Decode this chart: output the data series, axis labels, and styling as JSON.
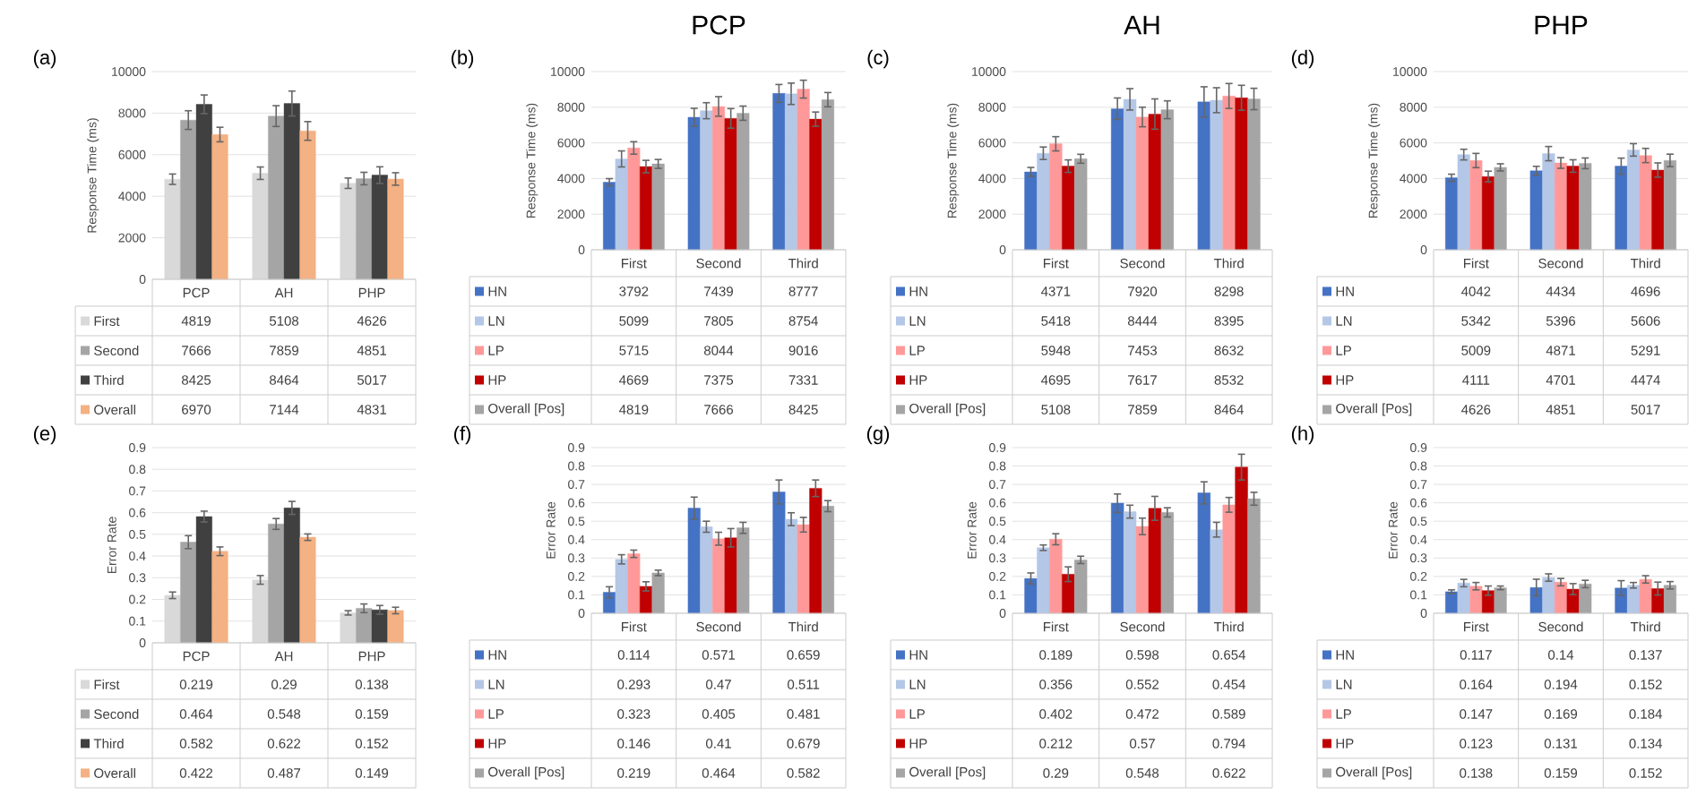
{
  "chart_data": [
    {
      "type": "bar",
      "annotations": [
        "(a)"
      ],
      "ylabel": "Response Time (ms)",
      "categories": [
        "PCP",
        "AH",
        "PHP"
      ],
      "ylim": [
        0,
        10000
      ],
      "yticks": [
        0,
        2000,
        4000,
        6000,
        8000,
        10000
      ],
      "grid": "y",
      "legend": "bottom",
      "data_labels": true,
      "series": [
        {
          "name": "First",
          "color": "#d9d9d9",
          "values": [
            4819,
            5108,
            4626
          ],
          "errors": [
            250,
            300,
            250
          ]
        },
        {
          "name": "Second",
          "color": "#a5a5a5",
          "values": [
            7666,
            7859,
            4851
          ],
          "errors": [
            450,
            500,
            300
          ]
        },
        {
          "name": "Third",
          "color": "#404040",
          "values": [
            8425,
            8464,
            5017
          ],
          "errors": [
            450,
            600,
            400
          ]
        },
        {
          "name": "Overall",
          "color": "#f4b183",
          "values": [
            6970,
            7144,
            4831
          ],
          "errors": [
            350,
            450,
            300
          ]
        }
      ]
    },
    {
      "type": "bar",
      "title": "PCP",
      "annotations": [
        "(b)"
      ],
      "ylabel": "Response Time (ms)",
      "categories": [
        "First",
        "Second",
        "Third"
      ],
      "ylim": [
        0,
        10000
      ],
      "yticks": [
        0,
        2000,
        4000,
        6000,
        8000,
        10000
      ],
      "grid": "y",
      "legend": "bottom",
      "data_labels": true,
      "series": [
        {
          "name": "HN",
          "color": "#4472c4",
          "values": [
            3792,
            7439,
            8777
          ],
          "errors": [
            200,
            500,
            500
          ]
        },
        {
          "name": "LN",
          "color": "#b4c7e7",
          "values": [
            5099,
            7805,
            8754
          ],
          "errors": [
            450,
            450,
            600
          ]
        },
        {
          "name": "LP",
          "color": "#ff9999",
          "values": [
            5715,
            8044,
            9016
          ],
          "errors": [
            350,
            550,
            500
          ]
        },
        {
          "name": "HP",
          "color": "#c00000",
          "values": [
            4669,
            7375,
            7331
          ],
          "errors": [
            350,
            550,
            400
          ]
        },
        {
          "name": "Overall [Pos]",
          "color": "#a5a5a5",
          "values": [
            4819,
            7666,
            8425
          ],
          "errors": [
            250,
            400,
            400
          ]
        }
      ]
    },
    {
      "type": "bar",
      "title": "AH",
      "annotations": [
        "(c)"
      ],
      "ylabel": "Response Time (ms)",
      "categories": [
        "First",
        "Second",
        "Third"
      ],
      "ylim": [
        0,
        10000
      ],
      "yticks": [
        0,
        2000,
        4000,
        6000,
        8000,
        10000
      ],
      "grid": "y",
      "legend": "bottom",
      "data_labels": true,
      "series": [
        {
          "name": "HN",
          "color": "#4472c4",
          "values": [
            4371,
            7920,
            8298
          ],
          "errors": [
            250,
            600,
            850
          ]
        },
        {
          "name": "LN",
          "color": "#b4c7e7",
          "values": [
            5418,
            8444,
            8395
          ],
          "errors": [
            350,
            600,
            700
          ]
        },
        {
          "name": "LP",
          "color": "#ff9999",
          "values": [
            5948,
            7453,
            8632
          ],
          "errors": [
            400,
            550,
            700
          ]
        },
        {
          "name": "HP",
          "color": "#c00000",
          "values": [
            4695,
            7617,
            8532
          ],
          "errors": [
            350,
            850,
            700
          ]
        },
        {
          "name": "Overall [Pos]",
          "color": "#a5a5a5",
          "values": [
            5108,
            7859,
            8464
          ],
          "errors": [
            250,
            500,
            600
          ]
        }
      ]
    },
    {
      "type": "bar",
      "title": "PHP",
      "annotations": [
        "(d)"
      ],
      "ylabel": "Response Time (ms)",
      "categories": [
        "First",
        "Second",
        "Third"
      ],
      "ylim": [
        0,
        10000
      ],
      "yticks": [
        0,
        2000,
        4000,
        6000,
        8000,
        10000
      ],
      "grid": "y",
      "legend": "bottom",
      "data_labels": true,
      "series": [
        {
          "name": "HN",
          "color": "#4472c4",
          "values": [
            4042,
            4434,
            4696
          ],
          "errors": [
            200,
            250,
            450
          ]
        },
        {
          "name": "LN",
          "color": "#b4c7e7",
          "values": [
            5342,
            5396,
            5606
          ],
          "errors": [
            300,
            400,
            350
          ]
        },
        {
          "name": "LP",
          "color": "#ff9999",
          "values": [
            5009,
            4871,
            5291
          ],
          "errors": [
            400,
            300,
            400
          ]
        },
        {
          "name": "HP",
          "color": "#c00000",
          "values": [
            4111,
            4701,
            4474
          ],
          "errors": [
            300,
            350,
            400
          ]
        },
        {
          "name": "Overall [Pos]",
          "color": "#a5a5a5",
          "values": [
            4626,
            4851,
            5017
          ],
          "errors": [
            200,
            300,
            350
          ]
        }
      ]
    },
    {
      "type": "bar",
      "annotations": [
        "(e)"
      ],
      "ylabel": "Error Rate",
      "categories": [
        "PCP",
        "AH",
        "PHP"
      ],
      "ylim": [
        0,
        0.9
      ],
      "yticks": [
        0,
        0.1,
        0.2,
        0.3,
        0.4,
        0.5,
        0.6,
        0.7,
        0.8,
        0.9
      ],
      "grid": "y",
      "legend": "bottom",
      "data_labels": true,
      "series": [
        {
          "name": "First",
          "color": "#d9d9d9",
          "values": [
            0.219,
            0.29,
            0.138
          ],
          "errors": [
            0.015,
            0.02,
            0.01
          ]
        },
        {
          "name": "Second",
          "color": "#a5a5a5",
          "values": [
            0.464,
            0.548,
            0.159
          ],
          "errors": [
            0.03,
            0.025,
            0.02
          ]
        },
        {
          "name": "Third",
          "color": "#404040",
          "values": [
            0.582,
            0.622,
            0.152
          ],
          "errors": [
            0.025,
            0.03,
            0.02
          ]
        },
        {
          "name": "Overall",
          "color": "#f4b183",
          "values": [
            0.422,
            0.487,
            0.149
          ],
          "errors": [
            0.02,
            0.015,
            0.015
          ]
        }
      ]
    },
    {
      "type": "bar",
      "annotations": [
        "(f)"
      ],
      "ylabel": "Error Rate",
      "categories": [
        "First",
        "Second",
        "Third"
      ],
      "ylim": [
        0,
        0.9
      ],
      "yticks": [
        0,
        0.1,
        0.2,
        0.3,
        0.4,
        0.5,
        0.6,
        0.7,
        0.8,
        0.9
      ],
      "grid": "y",
      "legend": "bottom",
      "data_labels": true,
      "series": [
        {
          "name": "HN",
          "color": "#4472c4",
          "values": [
            0.114,
            0.571,
            0.659
          ],
          "errors": [
            0.03,
            0.06,
            0.065
          ]
        },
        {
          "name": "LN",
          "color": "#b4c7e7",
          "values": [
            0.293,
            0.47,
            0.511
          ],
          "errors": [
            0.025,
            0.03,
            0.035
          ]
        },
        {
          "name": "LP",
          "color": "#ff9999",
          "values": [
            0.323,
            0.405,
            0.481
          ],
          "errors": [
            0.02,
            0.035,
            0.04
          ]
        },
        {
          "name": "HP",
          "color": "#c00000",
          "values": [
            0.146,
            0.41,
            0.679
          ],
          "errors": [
            0.025,
            0.05,
            0.045
          ]
        },
        {
          "name": "Overall [Pos]",
          "color": "#a5a5a5",
          "values": [
            0.219,
            0.464,
            0.582
          ],
          "errors": [
            0.015,
            0.03,
            0.03
          ]
        }
      ]
    },
    {
      "type": "bar",
      "annotations": [
        "(g)"
      ],
      "ylabel": "Error Rate",
      "categories": [
        "First",
        "Second",
        "Third"
      ],
      "ylim": [
        0,
        0.9
      ],
      "yticks": [
        0,
        0.1,
        0.2,
        0.3,
        0.4,
        0.5,
        0.6,
        0.7,
        0.8,
        0.9
      ],
      "grid": "y",
      "legend": "bottom",
      "data_labels": true,
      "series": [
        {
          "name": "HN",
          "color": "#4472c4",
          "values": [
            0.189,
            0.598,
            0.654
          ],
          "errors": [
            0.03,
            0.05,
            0.06
          ]
        },
        {
          "name": "LN",
          "color": "#b4c7e7",
          "values": [
            0.356,
            0.552,
            0.454
          ],
          "errors": [
            0.015,
            0.035,
            0.04
          ]
        },
        {
          "name": "LP",
          "color": "#ff9999",
          "values": [
            0.402,
            0.472,
            0.589
          ],
          "errors": [
            0.03,
            0.045,
            0.04
          ]
        },
        {
          "name": "HP",
          "color": "#c00000",
          "values": [
            0.212,
            0.57,
            0.794
          ],
          "errors": [
            0.04,
            0.065,
            0.07
          ]
        },
        {
          "name": "Overall [Pos]",
          "color": "#a5a5a5",
          "values": [
            0.29,
            0.548,
            0.622
          ],
          "errors": [
            0.02,
            0.025,
            0.035
          ]
        }
      ]
    },
    {
      "type": "bar",
      "annotations": [
        "(h)"
      ],
      "ylabel": "Error Rate",
      "categories": [
        "First",
        "Second",
        "Third"
      ],
      "ylim": [
        0,
        0.9
      ],
      "yticks": [
        0,
        0.1,
        0.2,
        0.3,
        0.4,
        0.5,
        0.6,
        0.7,
        0.8,
        0.9
      ],
      "grid": "y",
      "legend": "bottom",
      "data_labels": true,
      "series": [
        {
          "name": "HN",
          "color": "#4472c4",
          "values": [
            0.117,
            0.14,
            0.137
          ],
          "errors": [
            0.01,
            0.045,
            0.04
          ]
        },
        {
          "name": "LN",
          "color": "#b4c7e7",
          "values": [
            0.164,
            0.194,
            0.152
          ],
          "errors": [
            0.02,
            0.02,
            0.015
          ]
        },
        {
          "name": "LP",
          "color": "#ff9999",
          "values": [
            0.147,
            0.169,
            0.184
          ],
          "errors": [
            0.02,
            0.02,
            0.02
          ]
        },
        {
          "name": "HP",
          "color": "#c00000",
          "values": [
            0.123,
            0.131,
            0.134
          ],
          "errors": [
            0.025,
            0.03,
            0.035
          ]
        },
        {
          "name": "Overall [Pos]",
          "color": "#a5a5a5",
          "values": [
            0.138,
            0.159,
            0.152
          ],
          "errors": [
            0.01,
            0.02,
            0.02
          ]
        }
      ]
    }
  ]
}
